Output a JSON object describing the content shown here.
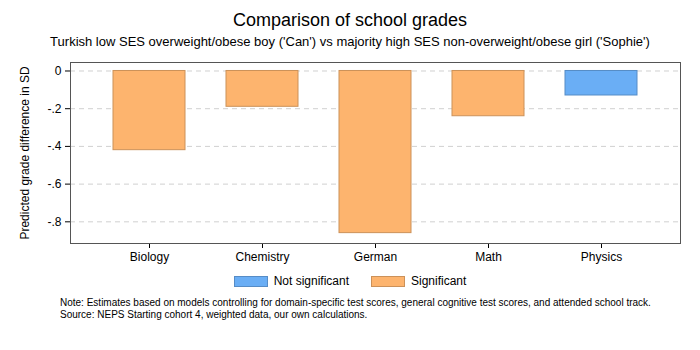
{
  "chart_data": {
    "type": "bar",
    "title": "Comparison of school grades",
    "subtitle": "Turkish low SES overweight/obese boy ('Can')  vs  majority high SES non-overweight/obese girl ('Sophie')",
    "y_label": "Predicted grade difference in SD",
    "categories": [
      "Biology",
      "Chemistry",
      "German",
      "Math",
      "Physics"
    ],
    "series": [
      {
        "name": "Not significant",
        "color": "#6aaef5",
        "values": [
          null,
          null,
          null,
          null,
          -0.13
        ]
      },
      {
        "name": "Significant",
        "color": "#fdb46e",
        "values": [
          -0.42,
          -0.19,
          -0.86,
          -0.24,
          null
        ]
      }
    ],
    "ylim": [
      -0.915,
      0.045
    ],
    "yticks": [
      0,
      {
        "value": -0.2,
        "label": "-.2"
      },
      {
        "value": -0.4,
        "label": "-.4"
      },
      {
        "value": -0.6,
        "label": "-.6"
      },
      {
        "value": -0.8,
        "label": "-.8"
      }
    ],
    "grid": true,
    "legend": "bottom",
    "caption": [
      "Note: Estimates based on models controlling for domain-specific test scores, general cognitive test scores, and attended school track.",
      "Source: NEPS Starting cohort 4, weighted data, our own calculations."
    ]
  }
}
